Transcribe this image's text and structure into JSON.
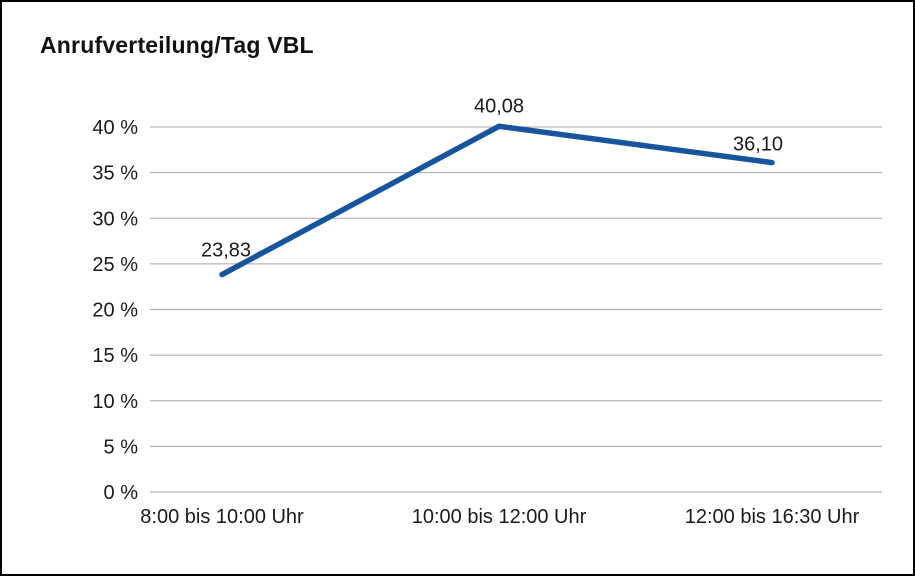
{
  "title": "Anrufverteilung/Tag VBL",
  "chart_data": {
    "type": "line",
    "title": "Anrufverteilung/Tag VBL",
    "categories": [
      "8:00 bis 10:00 Uhr",
      "10:00 bis 12:00 Uhr",
      "12:00 bis 16:30 Uhr"
    ],
    "values": [
      23.83,
      40.08,
      36.1
    ],
    "data_labels": [
      "23,83",
      "40,08",
      "36,10"
    ],
    "xlabel": "",
    "ylabel": "",
    "ylim": [
      0,
      40
    ],
    "ytick_step": 5,
    "ytick_labels": [
      "0 %",
      "5 %",
      "10 %",
      "15 %",
      "20 %",
      "25 %",
      "30 %",
      "35 %",
      "40 %"
    ],
    "grid": true,
    "legend": "none",
    "line_color": "#17549E",
    "grid_color": "#a8a8a8",
    "text_color": "#1a1a1a"
  }
}
